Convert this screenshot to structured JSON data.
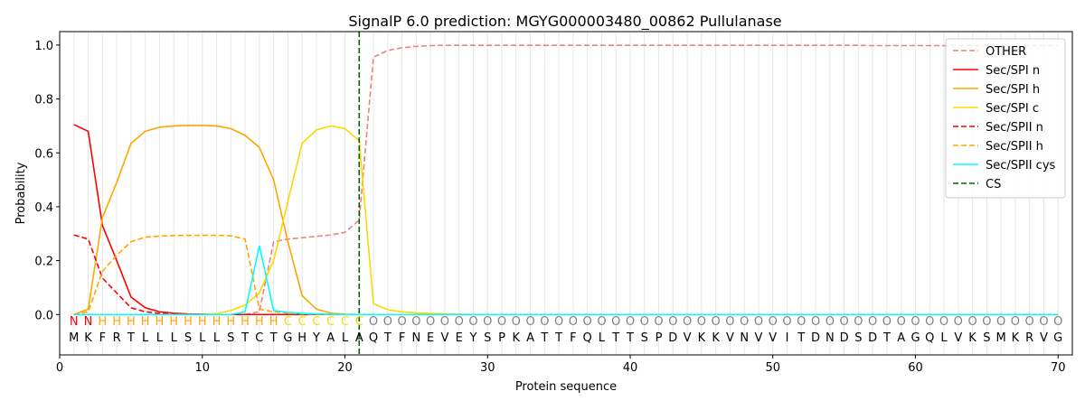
{
  "chart_data": {
    "type": "line",
    "title": "SignalP 6.0 prediction: MGYG000003480_00862 Pullulanase",
    "xlabel": "Protein sequence",
    "ylabel": "Probability",
    "xlim": [
      0,
      71
    ],
    "ylim": [
      -0.15,
      1.05
    ],
    "x_ticks": [
      0,
      10,
      20,
      30,
      40,
      50,
      60,
      70
    ],
    "y_ticks": [
      0.0,
      0.2,
      0.4,
      0.6,
      0.8,
      1.0
    ],
    "y_tick_labels": [
      "0.0",
      "0.2",
      "0.4",
      "0.6",
      "0.8",
      "1.0"
    ],
    "legend_position": "top-right",
    "sequence": [
      "M",
      "K",
      "F",
      "R",
      "T",
      "L",
      "L",
      "L",
      "S",
      "L",
      "L",
      "S",
      "T",
      "C",
      "T",
      "G",
      "H",
      "Y",
      "A",
      "L",
      "A",
      "Q",
      "T",
      "F",
      "N",
      "E",
      "V",
      "E",
      "Y",
      "S",
      "P",
      "K",
      "A",
      "T",
      "T",
      "F",
      "Q",
      "L",
      "T",
      "T",
      "S",
      "P",
      "D",
      "V",
      "K",
      "K",
      "V",
      "N",
      "V",
      "V",
      "I",
      "T",
      "D",
      "N",
      "D",
      "S",
      "D",
      "T",
      "A",
      "G",
      "Q",
      "L",
      "V",
      "K",
      "S",
      "M",
      "K",
      "R",
      "V",
      "G"
    ],
    "region_labels": [
      "N",
      "N",
      "H",
      "H",
      "H",
      "H",
      "H",
      "H",
      "H",
      "H",
      "H",
      "H",
      "H",
      "H",
      "H",
      "C",
      "C",
      "C",
      "C",
      "C",
      "C",
      "O",
      "O",
      "O",
      "O",
      "O",
      "O",
      "O",
      "O",
      "O",
      "O",
      "O",
      "O",
      "O",
      "O",
      "O",
      "O",
      "O",
      "O",
      "O",
      "O",
      "O",
      "O",
      "O",
      "O",
      "O",
      "O",
      "O",
      "O",
      "O",
      "O",
      "O",
      "O",
      "O",
      "O",
      "O",
      "O",
      "O",
      "O",
      "O",
      "O",
      "O",
      "O",
      "O",
      "O",
      "O",
      "O",
      "O",
      "O",
      "O"
    ],
    "region_colors": {
      "N": "#ff0000",
      "H": "#ffa500",
      "C": "#ffd700",
      "O": "#808080"
    },
    "cleavage_site": 21,
    "series": [
      {
        "name": "OTHER",
        "color": "#f08080",
        "dash": "dashed",
        "values": [
          0.0,
          0.0,
          0.0,
          0.0,
          0.0,
          0.0,
          0.0,
          0.0,
          0.0,
          0.0,
          0.0,
          0.0,
          0.0,
          0.01,
          0.27,
          0.28,
          0.285,
          0.29,
          0.295,
          0.305,
          0.35,
          0.955,
          0.98,
          0.99,
          0.995,
          0.998,
          0.999,
          0.999,
          0.999,
          0.999,
          0.999,
          0.999,
          0.999,
          0.999,
          0.999,
          0.999,
          0.999,
          0.999,
          0.999,
          0.999,
          0.999,
          0.999,
          0.999,
          0.999,
          0.999,
          0.999,
          0.999,
          0.999,
          0.999,
          0.999,
          0.999,
          0.999,
          0.999,
          0.999,
          0.999,
          0.999,
          0.998,
          0.998,
          0.998,
          0.998,
          0.998,
          0.998,
          0.998,
          0.998,
          0.998,
          0.998,
          0.998,
          0.998,
          0.998,
          0.998
        ]
      },
      {
        "name": "Sec/SPI n",
        "color": "#ff0000",
        "dash": "solid",
        "values": [
          0.705,
          0.68,
          0.33,
          0.2,
          0.065,
          0.025,
          0.01,
          0.005,
          0.002,
          0.001,
          0.0,
          0.0,
          0.0,
          0.0,
          0.0,
          0.0,
          0.0,
          0.0,
          0.0,
          0.0,
          0.0,
          0.0,
          0.0,
          0.0,
          0.0,
          0.0,
          0.0,
          0.0,
          0.0,
          0.0,
          0.0,
          0.0,
          0.0,
          0.0,
          0.0,
          0.0,
          0.0,
          0.0,
          0.0,
          0.0,
          0.0,
          0.0,
          0.0,
          0.0,
          0.0,
          0.0,
          0.0,
          0.0,
          0.0,
          0.0,
          0.0,
          0.0,
          0.0,
          0.0,
          0.0,
          0.0,
          0.0,
          0.0,
          0.0,
          0.0,
          0.0,
          0.0,
          0.0,
          0.0,
          0.0,
          0.0,
          0.0,
          0.0,
          0.0,
          0.0
        ]
      },
      {
        "name": "Sec/SPI h",
        "color": "#ffa500",
        "dash": "solid",
        "values": [
          0.0,
          0.02,
          0.36,
          0.49,
          0.635,
          0.68,
          0.695,
          0.7,
          0.702,
          0.702,
          0.7,
          0.69,
          0.665,
          0.62,
          0.5,
          0.27,
          0.07,
          0.02,
          0.005,
          0.001,
          0.0,
          0.0,
          0.0,
          0.0,
          0.0,
          0.0,
          0.0,
          0.0,
          0.0,
          0.0,
          0.0,
          0.0,
          0.0,
          0.0,
          0.0,
          0.0,
          0.0,
          0.0,
          0.0,
          0.0,
          0.0,
          0.0,
          0.0,
          0.0,
          0.0,
          0.0,
          0.0,
          0.0,
          0.0,
          0.0,
          0.0,
          0.0,
          0.0,
          0.0,
          0.0,
          0.0,
          0.0,
          0.0,
          0.0,
          0.0,
          0.0,
          0.0,
          0.0,
          0.0,
          0.0,
          0.0,
          0.0,
          0.0,
          0.0,
          0.0
        ]
      },
      {
        "name": "Sec/SPI c",
        "color": "#ffd700",
        "dash": "solid",
        "values": [
          0.0,
          0.0,
          0.0,
          0.0,
          0.0,
          0.0,
          0.0,
          0.0,
          0.0,
          0.0,
          0.003,
          0.015,
          0.035,
          0.08,
          0.2,
          0.42,
          0.635,
          0.685,
          0.7,
          0.69,
          0.645,
          0.04,
          0.018,
          0.01,
          0.006,
          0.004,
          0.002,
          0.001,
          0.0,
          0.0,
          0.0,
          0.0,
          0.0,
          0.0,
          0.0,
          0.0,
          0.0,
          0.0,
          0.0,
          0.0,
          0.0,
          0.0,
          0.0,
          0.0,
          0.0,
          0.0,
          0.0,
          0.0,
          0.0,
          0.0,
          0.0,
          0.0,
          0.0,
          0.0,
          0.0,
          0.0,
          0.0,
          0.0,
          0.0,
          0.0,
          0.0,
          0.0,
          0.0,
          0.0,
          0.0,
          0.0,
          0.0,
          0.0,
          0.0,
          0.0
        ]
      },
      {
        "name": "Sec/SPII n",
        "color": "#ff0000",
        "dash": "dashed",
        "values": [
          0.295,
          0.28,
          0.135,
          0.08,
          0.025,
          0.01,
          0.004,
          0.002,
          0.001,
          0.0,
          0.0,
          0.0,
          0.0,
          0.0,
          0.0,
          0.0,
          0.0,
          0.0,
          0.0,
          0.0,
          0.0,
          0.0,
          0.0,
          0.0,
          0.0,
          0.0,
          0.0,
          0.0,
          0.0,
          0.0,
          0.0,
          0.0,
          0.0,
          0.0,
          0.0,
          0.0,
          0.0,
          0.0,
          0.0,
          0.0,
          0.0,
          0.0,
          0.0,
          0.0,
          0.0,
          0.0,
          0.0,
          0.0,
          0.0,
          0.0,
          0.0,
          0.0,
          0.0,
          0.0,
          0.0,
          0.0,
          0.0,
          0.0,
          0.0,
          0.0,
          0.0,
          0.0,
          0.0,
          0.0,
          0.0,
          0.0,
          0.0,
          0.0,
          0.0,
          0.0
        ]
      },
      {
        "name": "Sec/SPII h",
        "color": "#ffa500",
        "dash": "dashed",
        "values": [
          0.0,
          0.01,
          0.16,
          0.22,
          0.27,
          0.287,
          0.291,
          0.293,
          0.294,
          0.294,
          0.294,
          0.292,
          0.28,
          0.02,
          0.01,
          0.005,
          0.002,
          0.001,
          0.0,
          0.0,
          0.0,
          0.0,
          0.0,
          0.0,
          0.0,
          0.0,
          0.0,
          0.0,
          0.0,
          0.0,
          0.0,
          0.0,
          0.0,
          0.0,
          0.0,
          0.0,
          0.0,
          0.0,
          0.0,
          0.0,
          0.0,
          0.0,
          0.0,
          0.0,
          0.0,
          0.0,
          0.0,
          0.0,
          0.0,
          0.0,
          0.0,
          0.0,
          0.0,
          0.0,
          0.0,
          0.0,
          0.0,
          0.0,
          0.0,
          0.0,
          0.0,
          0.0,
          0.0,
          0.0,
          0.0,
          0.0,
          0.0,
          0.0,
          0.0,
          0.0
        ]
      },
      {
        "name": "Sec/SPII cys",
        "color": "#00ffff",
        "dash": "solid",
        "values": [
          0.0,
          0.0,
          0.0,
          0.0,
          0.0,
          0.0,
          0.0,
          0.0,
          0.0,
          0.0,
          0.0,
          0.0,
          0.01,
          0.255,
          0.015,
          0.008,
          0.004,
          0.002,
          0.001,
          0.0,
          0.0,
          0.0,
          0.0,
          0.0,
          0.0,
          0.0,
          0.0,
          0.0,
          0.0,
          0.0,
          0.0,
          0.0,
          0.0,
          0.0,
          0.0,
          0.0,
          0.0,
          0.0,
          0.0,
          0.0,
          0.0,
          0.0,
          0.0,
          0.0,
          0.0,
          0.0,
          0.0,
          0.0,
          0.0,
          0.0,
          0.0,
          0.0,
          0.0,
          0.0,
          0.0,
          0.0,
          0.0,
          0.0,
          0.0,
          0.0,
          0.0,
          0.0,
          0.0,
          0.0,
          0.0,
          0.0,
          0.0,
          0.0,
          0.0,
          0.0
        ]
      }
    ],
    "cs_legend": {
      "name": "CS",
      "color": "#006400",
      "dash": "dashed"
    }
  }
}
